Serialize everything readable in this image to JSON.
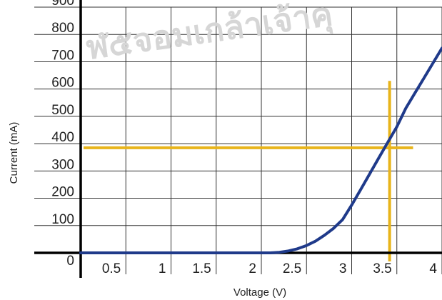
{
  "chart_data": {
    "type": "line",
    "title": "",
    "xlabel": "Voltage (V)",
    "ylabel": "Current (mA)",
    "xlim": [
      0,
      4
    ],
    "ylim": [
      0,
      900
    ],
    "x_ticks": [
      0.5,
      1,
      1.5,
      2,
      2.5,
      3,
      3.5,
      4
    ],
    "x_tick_labels": [
      "0.5",
      "1",
      "1.5",
      "2",
      "2.5",
      "3",
      "3.5",
      "4"
    ],
    "y_ticks": [
      0,
      100,
      200,
      300,
      400,
      500,
      600,
      700,
      800,
      900
    ],
    "y_tick_labels": [
      "0",
      "100",
      "200",
      "300",
      "400",
      "500",
      "600",
      "700",
      "800",
      "900"
    ],
    "grid": true,
    "series": [
      {
        "color": "#1f3a8a",
        "x": [
          0,
          0.5,
          1,
          1.5,
          2,
          2.1,
          2.2,
          2.3,
          2.4,
          2.5,
          2.6,
          2.7,
          2.8,
          2.9,
          3.0,
          3.1,
          3.2,
          3.3,
          3.4,
          3.5,
          3.6,
          3.7,
          3.8,
          3.9,
          4.0
        ],
        "y": [
          0,
          0,
          0,
          0,
          0,
          0,
          2,
          7,
          15,
          27,
          43,
          65,
          90,
          122,
          175,
          232,
          290,
          348,
          405,
          462,
          530,
          585,
          640,
          695,
          750
        ]
      }
    ],
    "reference_lines": [
      {
        "orientation": "horizontal",
        "value": 385,
        "color": "#e8b41a"
      },
      {
        "orientation": "vertical",
        "value": 3.42,
        "color": "#e8b41a"
      }
    ]
  },
  "watermark": "ฬ๕จอมเกล้าเจ้าคุ"
}
